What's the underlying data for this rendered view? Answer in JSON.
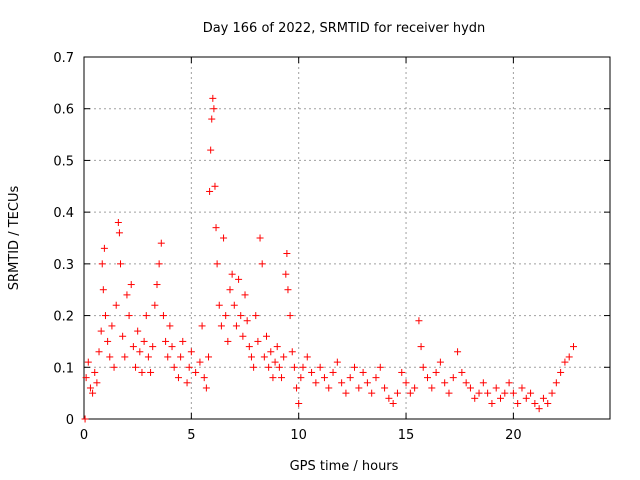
{
  "chart_data": {
    "type": "scatter",
    "title": "Day 166 of 2022, SRMTID for receiver hydn",
    "xlabel": "GPS time / hours",
    "ylabel": "SRMTID / TECUs",
    "xlim": [
      0,
      24.5
    ],
    "ylim": [
      0,
      0.7
    ],
    "xticks": [
      0,
      5,
      10,
      15,
      20
    ],
    "xtick_labels": [
      "0",
      "5",
      "10",
      "15",
      "20"
    ],
    "yticks": [
      0,
      0.1,
      0.2,
      0.3,
      0.4,
      0.5,
      0.6,
      0.7
    ],
    "ytick_labels": [
      "0",
      "0.1",
      "0.2",
      "0.3",
      "0.4",
      "0.5",
      "0.6",
      "0.7"
    ],
    "grid": true,
    "marker": "+",
    "color": "#ff0000",
    "series": [
      {
        "name": "SRMTID",
        "points": [
          [
            0.05,
            0.0
          ],
          [
            0.1,
            0.08
          ],
          [
            0.2,
            0.11
          ],
          [
            0.3,
            0.06
          ],
          [
            0.4,
            0.05
          ],
          [
            0.5,
            0.09
          ],
          [
            0.6,
            0.07
          ],
          [
            0.7,
            0.13
          ],
          [
            0.8,
            0.17
          ],
          [
            0.85,
            0.3
          ],
          [
            0.9,
            0.25
          ],
          [
            0.95,
            0.33
          ],
          [
            1.0,
            0.2
          ],
          [
            1.1,
            0.15
          ],
          [
            1.2,
            0.12
          ],
          [
            1.3,
            0.18
          ],
          [
            1.4,
            0.1
          ],
          [
            1.5,
            0.22
          ],
          [
            1.6,
            0.38
          ],
          [
            1.65,
            0.36
          ],
          [
            1.7,
            0.3
          ],
          [
            1.8,
            0.16
          ],
          [
            1.9,
            0.12
          ],
          [
            2.0,
            0.24
          ],
          [
            2.1,
            0.2
          ],
          [
            2.2,
            0.26
          ],
          [
            2.3,
            0.14
          ],
          [
            2.4,
            0.1
          ],
          [
            2.5,
            0.17
          ],
          [
            2.6,
            0.13
          ],
          [
            2.7,
            0.09
          ],
          [
            2.8,
            0.15
          ],
          [
            2.9,
            0.2
          ],
          [
            3.0,
            0.12
          ],
          [
            3.1,
            0.09
          ],
          [
            3.2,
            0.14
          ],
          [
            3.3,
            0.22
          ],
          [
            3.4,
            0.26
          ],
          [
            3.5,
            0.3
          ],
          [
            3.6,
            0.34
          ],
          [
            3.7,
            0.2
          ],
          [
            3.8,
            0.15
          ],
          [
            3.9,
            0.12
          ],
          [
            4.0,
            0.18
          ],
          [
            4.1,
            0.14
          ],
          [
            4.2,
            0.1
          ],
          [
            4.4,
            0.08
          ],
          [
            4.5,
            0.12
          ],
          [
            4.6,
            0.15
          ],
          [
            4.8,
            0.07
          ],
          [
            4.9,
            0.1
          ],
          [
            5.0,
            0.13
          ],
          [
            5.2,
            0.09
          ],
          [
            5.4,
            0.11
          ],
          [
            5.5,
            0.18
          ],
          [
            5.6,
            0.08
          ],
          [
            5.7,
            0.06
          ],
          [
            5.8,
            0.12
          ],
          [
            5.85,
            0.44
          ],
          [
            5.9,
            0.52
          ],
          [
            5.95,
            0.58
          ],
          [
            6.0,
            0.62
          ],
          [
            6.05,
            0.6
          ],
          [
            6.1,
            0.45
          ],
          [
            6.15,
            0.37
          ],
          [
            6.2,
            0.3
          ],
          [
            6.3,
            0.22
          ],
          [
            6.4,
            0.18
          ],
          [
            6.5,
            0.35
          ],
          [
            6.6,
            0.2
          ],
          [
            6.7,
            0.15
          ],
          [
            6.8,
            0.25
          ],
          [
            6.9,
            0.28
          ],
          [
            7.0,
            0.22
          ],
          [
            7.1,
            0.18
          ],
          [
            7.2,
            0.27
          ],
          [
            7.3,
            0.2
          ],
          [
            7.4,
            0.16
          ],
          [
            7.5,
            0.24
          ],
          [
            7.6,
            0.19
          ],
          [
            7.7,
            0.14
          ],
          [
            7.8,
            0.12
          ],
          [
            7.9,
            0.1
          ],
          [
            8.0,
            0.2
          ],
          [
            8.1,
            0.15
          ],
          [
            8.2,
            0.35
          ],
          [
            8.3,
            0.3
          ],
          [
            8.4,
            0.12
          ],
          [
            8.5,
            0.16
          ],
          [
            8.6,
            0.1
          ],
          [
            8.7,
            0.13
          ],
          [
            8.8,
            0.08
          ],
          [
            8.9,
            0.11
          ],
          [
            9.0,
            0.14
          ],
          [
            9.1,
            0.1
          ],
          [
            9.2,
            0.08
          ],
          [
            9.3,
            0.12
          ],
          [
            9.4,
            0.28
          ],
          [
            9.45,
            0.32
          ],
          [
            9.5,
            0.25
          ],
          [
            9.6,
            0.2
          ],
          [
            9.7,
            0.13
          ],
          [
            9.8,
            0.1
          ],
          [
            9.9,
            0.06
          ],
          [
            10.0,
            0.03
          ],
          [
            10.1,
            0.08
          ],
          [
            10.2,
            0.1
          ],
          [
            10.4,
            0.12
          ],
          [
            10.6,
            0.09
          ],
          [
            10.8,
            0.07
          ],
          [
            11.0,
            0.1
          ],
          [
            11.2,
            0.08
          ],
          [
            11.4,
            0.06
          ],
          [
            11.6,
            0.09
          ],
          [
            11.8,
            0.11
          ],
          [
            12.0,
            0.07
          ],
          [
            12.2,
            0.05
          ],
          [
            12.4,
            0.08
          ],
          [
            12.6,
            0.1
          ],
          [
            12.8,
            0.06
          ],
          [
            13.0,
            0.09
          ],
          [
            13.2,
            0.07
          ],
          [
            13.4,
            0.05
          ],
          [
            13.6,
            0.08
          ],
          [
            13.8,
            0.1
          ],
          [
            14.0,
            0.06
          ],
          [
            14.2,
            0.04
          ],
          [
            14.4,
            0.03
          ],
          [
            14.6,
            0.05
          ],
          [
            14.8,
            0.09
          ],
          [
            15.0,
            0.07
          ],
          [
            15.2,
            0.05
          ],
          [
            15.4,
            0.06
          ],
          [
            15.6,
            0.19
          ],
          [
            15.7,
            0.14
          ],
          [
            15.8,
            0.1
          ],
          [
            16.0,
            0.08
          ],
          [
            16.2,
            0.06
          ],
          [
            16.4,
            0.09
          ],
          [
            16.6,
            0.11
          ],
          [
            16.8,
            0.07
          ],
          [
            17.0,
            0.05
          ],
          [
            17.2,
            0.08
          ],
          [
            17.4,
            0.13
          ],
          [
            17.6,
            0.09
          ],
          [
            17.8,
            0.07
          ],
          [
            18.0,
            0.06
          ],
          [
            18.2,
            0.04
          ],
          [
            18.4,
            0.05
          ],
          [
            18.6,
            0.07
          ],
          [
            18.8,
            0.05
          ],
          [
            19.0,
            0.03
          ],
          [
            19.2,
            0.06
          ],
          [
            19.4,
            0.04
          ],
          [
            19.6,
            0.05
          ],
          [
            19.8,
            0.07
          ],
          [
            20.0,
            0.05
          ],
          [
            20.2,
            0.03
          ],
          [
            20.4,
            0.06
          ],
          [
            20.6,
            0.04
          ],
          [
            20.8,
            0.05
          ],
          [
            21.0,
            0.03
          ],
          [
            21.2,
            0.02
          ],
          [
            21.4,
            0.04
          ],
          [
            21.6,
            0.03
          ],
          [
            21.8,
            0.05
          ],
          [
            22.0,
            0.07
          ],
          [
            22.2,
            0.09
          ],
          [
            22.4,
            0.11
          ],
          [
            22.6,
            0.12
          ],
          [
            22.8,
            0.14
          ]
        ]
      }
    ]
  }
}
